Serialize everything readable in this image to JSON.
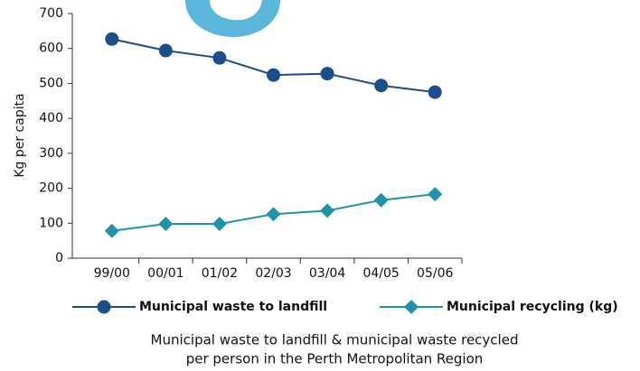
{
  "chart_data": {
    "type": "line",
    "caption": [
      "Municipal waste to landfill & municipal waste recycled",
      "per person in the Perth Metropolitan Region"
    ],
    "y_label": "Kg per capita",
    "categories": [
      "99/00",
      "00/01",
      "01/02",
      "02/03",
      "03/04",
      "04/05",
      "05/06"
    ],
    "series": [
      {
        "name": "Municipal waste to landfill",
        "color": "#1b4f8c",
        "marker": "circle",
        "values": [
          627,
          594,
          573,
          524,
          528,
          494,
          475
        ]
      },
      {
        "name": "Municipal recycling (kg)",
        "color": "#1f93aa",
        "marker": "diamond",
        "values": [
          78,
          98,
          98,
          126,
          136,
          166,
          183
        ]
      }
    ],
    "ylim": [
      0,
      700
    ],
    "yticks": [
      0,
      100,
      200,
      300,
      400,
      500,
      600,
      700
    ],
    "grid": false,
    "legend": "bottom"
  }
}
